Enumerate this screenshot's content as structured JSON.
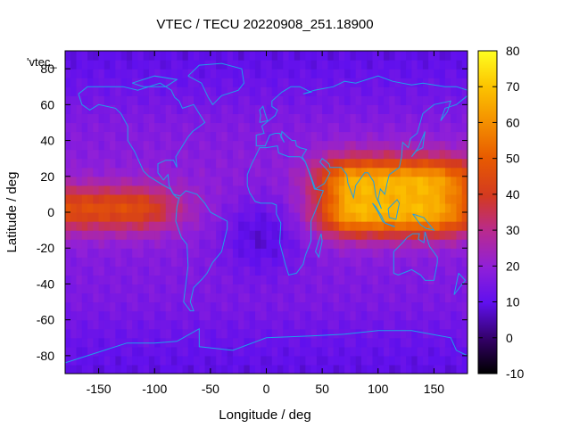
{
  "chart_data": {
    "type": "heatmap",
    "title": "VTEC / TECU 20220908_251.18900",
    "xlabel": "Longitude / deg",
    "ylabel": "Latitude / deg",
    "xlim": [
      -180,
      180
    ],
    "ylim": [
      -90,
      90
    ],
    "xticks": [
      -150,
      -100,
      -50,
      0,
      50,
      100,
      150
    ],
    "yticks": [
      -80,
      -60,
      -40,
      -20,
      0,
      20,
      40,
      60,
      80
    ],
    "colorbar": {
      "min": -10,
      "max": 80,
      "ticks": [
        -10,
        0,
        10,
        20,
        30,
        40,
        50,
        60,
        70,
        80
      ]
    },
    "legend_label": "'vtec_",
    "grid": false,
    "features": {
      "background_vtec": 15,
      "equatorial_band_west": {
        "lon_range": [
          -180,
          -60
        ],
        "lat_center": 2,
        "peak_vtec": 42
      },
      "equatorial_band_east": {
        "lon_range": [
          45,
          180
        ],
        "lat_center": 10,
        "peak_vtec": 68
      },
      "minimum": {
        "lon": -5,
        "lat": -12,
        "vtec": 5
      }
    },
    "coastlines": true
  }
}
